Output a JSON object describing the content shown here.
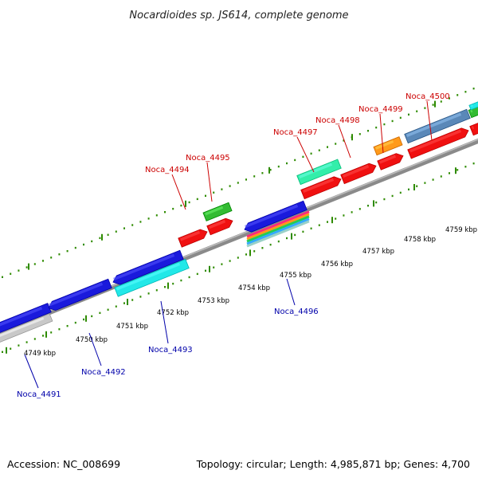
{
  "title": "Nocardioides sp. JS614, complete genome",
  "footer": {
    "accession": "Accession: NC_008699",
    "topology": "Topology: circular; Length: 4,985,871 bp; Genes: 4,700"
  },
  "colors": {
    "backbone": "#8a8a8a",
    "tick": "#2e8b00",
    "label_forward": "#cc0000",
    "label_reverse": "#0000aa",
    "blue": "#1a1adc",
    "cyan": "#22e8e8",
    "gray": "#c8c8c8",
    "red": "#f01010",
    "green": "#33bb33",
    "teal": "#33eeaa",
    "orange": "#ff9a1a",
    "steel": "#5a88b8"
  },
  "kbp_labels": [
    "4749 kbp",
    "4750 kbp",
    "4751 kbp",
    "4752 kbp",
    "4753 kbp",
    "4754 kbp",
    "4755 kbp",
    "4756 kbp",
    "4757 kbp",
    "4758 kbp",
    "4759 kbp"
  ],
  "gene_labels": {
    "forward": [
      "Noca_4494",
      "Noca_4495",
      "Noca_4497",
      "Noca_4498",
      "Noca_4499",
      "Noca_4500"
    ],
    "reverse": [
      "Noca_4491",
      "Noca_4492",
      "Noca_4493",
      "Noca_4496"
    ]
  },
  "features": [
    {
      "name": "Noca_4491",
      "strand": "reverse",
      "color": "blue"
    },
    {
      "name": "Noca_4492",
      "strand": "reverse",
      "color": "blue"
    },
    {
      "name": "Noca_4493",
      "strand": "reverse",
      "color": "blue"
    },
    {
      "name": "Noca_4496",
      "strand": "reverse",
      "color": "blue"
    },
    {
      "name": "Noca_4494",
      "strand": "forward",
      "color": "red"
    },
    {
      "name": "Noca_4495",
      "strand": "forward",
      "color": "red"
    },
    {
      "name": "Noca_4497",
      "strand": "forward",
      "color": "red"
    },
    {
      "name": "Noca_4498",
      "strand": "forward",
      "color": "red"
    },
    {
      "name": "Noca_4499",
      "strand": "forward",
      "color": "red"
    },
    {
      "name": "Noca_4500",
      "strand": "forward",
      "color": "red"
    }
  ]
}
